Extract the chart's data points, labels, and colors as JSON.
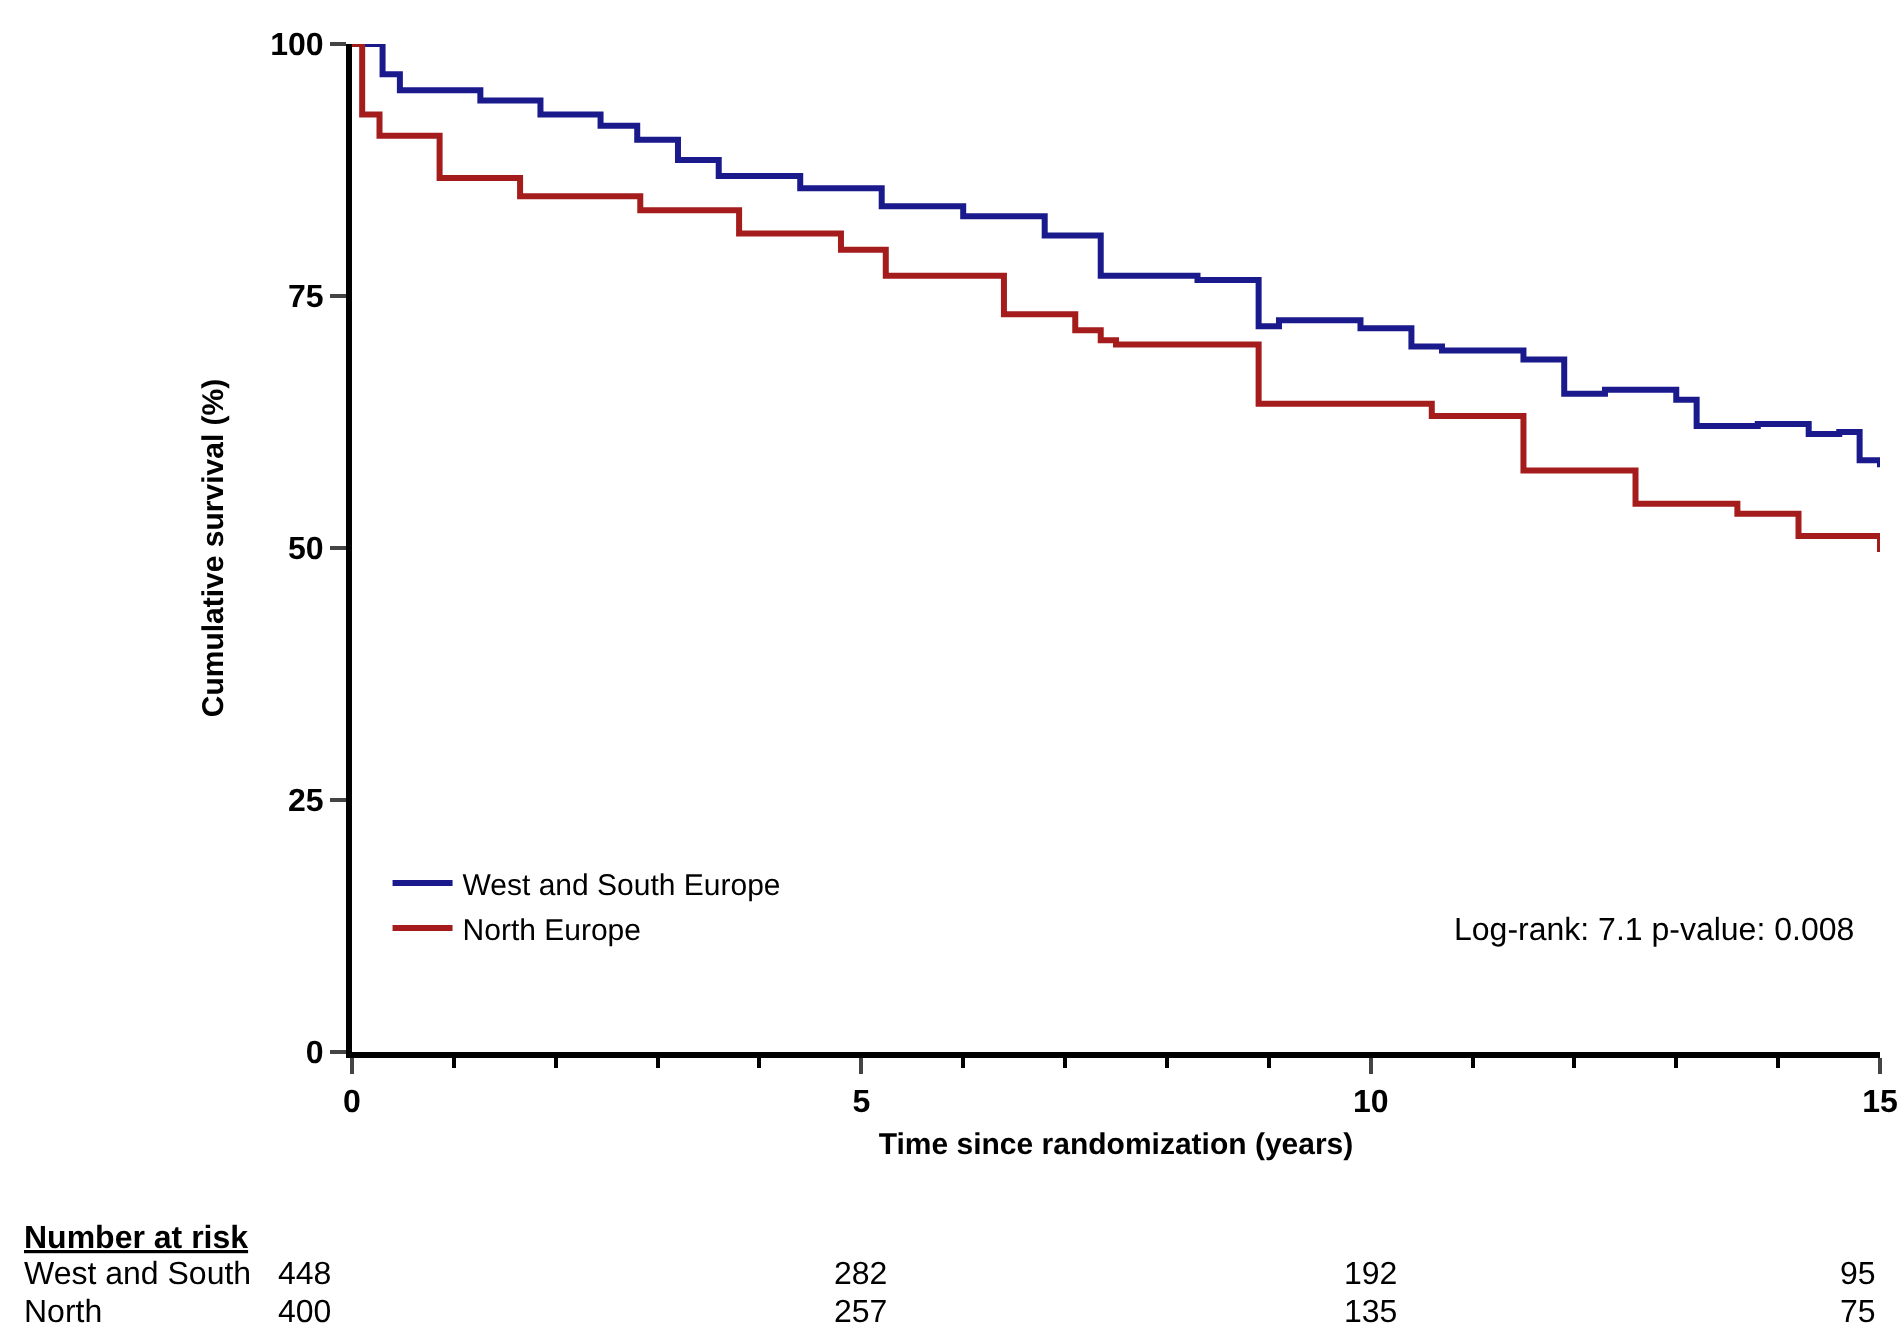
{
  "chart_data": {
    "type": "step",
    "xlabel": "Time since randomization (years)",
    "ylabel": "Cumulative survival (%)",
    "xlim": [
      0,
      15
    ],
    "xticks": [
      0,
      5,
      10,
      15
    ],
    "ylim": [
      0,
      100
    ],
    "yticks": [
      0,
      25,
      50,
      75,
      100
    ],
    "legend": "bottom left",
    "marker": "none",
    "line_style": "solid",
    "annotations": [
      "Log-rank: 7.1 p-value: 0.008",
      "Number at risk",
      "West and South",
      "448",
      "282",
      "192",
      "95",
      "North",
      "400",
      "257",
      "135",
      "75"
    ],
    "series": [
      {
        "name": "West and South Europe",
        "color": "#1a1a8c",
        "x": [
          0,
          0.3,
          0.47,
          1.26,
          1.85,
          2.44,
          2.8,
          3.2,
          3.6,
          4.4,
          5.2,
          6.0,
          6.8,
          7.35,
          7.5,
          8.3,
          8.9,
          9.1,
          9.9,
          10.4,
          10.7,
          11.5,
          11.9,
          12.3,
          13.0,
          13.2,
          13.8,
          14.3,
          14.6,
          14.8,
          15
        ],
        "values": [
          100,
          97,
          95.4,
          94.4,
          93,
          91.9,
          90.5,
          88.5,
          86.9,
          85.7,
          83.9,
          82.9,
          81,
          77.0,
          77.0,
          76.6,
          72.0,
          72.6,
          71.8,
          70,
          69.6,
          68.7,
          65.3,
          65.7,
          64.7,
          62.1,
          62.3,
          61.3,
          61.5,
          58.7,
          58
        ]
      },
      {
        "name": "North Europe",
        "color": "#a51c1c",
        "x": [
          0,
          0.1,
          0.27,
          0.86,
          1.65,
          2.83,
          3.8,
          4.8,
          5.24,
          6.4,
          7.1,
          7.35,
          7.5,
          8.9,
          10.6,
          11.5,
          12.6,
          13.6,
          14.2,
          15
        ],
        "values": [
          100,
          93,
          90.9,
          86.7,
          84.9,
          83.5,
          81.2,
          79.6,
          77,
          73.2,
          71.6,
          70.6,
          70.2,
          64.3,
          63.1,
          57.7,
          54.4,
          53.4,
          51.2,
          49.6
        ]
      }
    ]
  }
}
